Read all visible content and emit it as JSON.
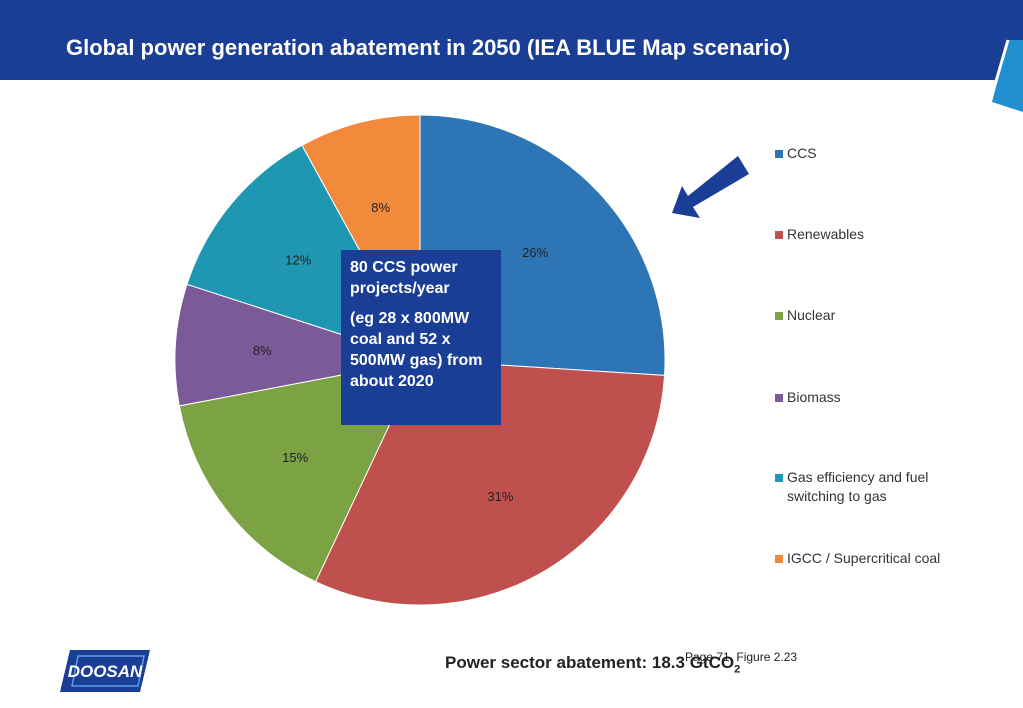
{
  "header": {
    "title": "Global power generation abatement in 2050 (IEA BLUE Map scenario)"
  },
  "callout": {
    "line1": "80 CCS power projects/year",
    "line2": "(eg 28 x 800MW coal and 52 x 500MW gas) from about 2020"
  },
  "footer": {
    "abatement_prefix": "Power sector abatement: 18.3 GtCO",
    "abatement_subscript": "2",
    "page_note": "Page 71, Figure 2.23",
    "logo_text": "DOOSAN"
  },
  "colors": {
    "brand_blue": "#1a3d96",
    "arrow_blue": "#1a3d96"
  },
  "chart_data": {
    "type": "pie",
    "title": "",
    "slices": [
      {
        "name": "CCS",
        "percent": 26,
        "label": "26%",
        "color": "#2e75b6"
      },
      {
        "name": "Renewables",
        "percent": 31,
        "label": "31%",
        "color": "#c0504d"
      },
      {
        "name": "Nuclear",
        "percent": 15,
        "label": "15%",
        "color": "#7ba344"
      },
      {
        "name": "Biomass",
        "percent": 8,
        "label": "8%",
        "color": "#7b5a9a"
      },
      {
        "name": "Gas efficiency and fuel switching to gas",
        "percent": 12,
        "label": "12%",
        "color": "#1f97b2"
      },
      {
        "name": "IGCC / Supercritical coal",
        "percent": 8,
        "label": "8%",
        "color": "#f28a3c"
      }
    ],
    "legend": {
      "placement": "right",
      "entries": [
        "CCS",
        "Renewables",
        "Nuclear",
        "Biomass",
        "Gas efficiency and fuel switching to gas",
        "IGCC / Supercritical coal"
      ]
    }
  }
}
